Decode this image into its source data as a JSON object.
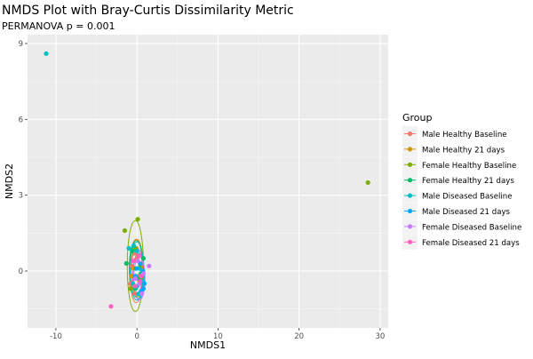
{
  "chart_data": {
    "type": "scatter",
    "title": "NMDS Plot with Bray-Curtis Dissimilarity Metric",
    "subtitle": "PERMANOVA p = 0.001",
    "xlabel": "NMDS1",
    "ylabel": "NMDS2",
    "xlim": [
      -13.5,
      31.0
    ],
    "ylim": [
      -2.25,
      9.35
    ],
    "x_ticks": [
      -10,
      0,
      10,
      20,
      30
    ],
    "y_ticks": [
      0,
      3,
      6,
      9
    ],
    "grid": true,
    "legend_title": "Group",
    "legend_position": "right",
    "series": [
      {
        "name": "Male Healthy Baseline",
        "color": "#F8766D",
        "points": [
          [
            -0.6,
            0.2
          ],
          [
            -0.3,
            0.7
          ],
          [
            0.2,
            -0.2
          ],
          [
            -0.8,
            -0.5
          ],
          [
            0.4,
            0.3
          ],
          [
            -0.2,
            -0.9
          ],
          [
            0.0,
            0.5
          ]
        ],
        "ellipse": {
          "cx": -0.1,
          "cy": 0.0,
          "rx": 0.8,
          "ry": 1.25
        }
      },
      {
        "name": "Male Healthy 21 days",
        "color": "#CD9600",
        "points": [
          [
            -0.4,
            0.1
          ],
          [
            0.1,
            0.6
          ],
          [
            0.3,
            -0.4
          ],
          [
            -0.7,
            -0.2
          ],
          [
            -0.1,
            0.9
          ],
          [
            0.5,
            0.1
          ]
        ],
        "ellipse": {
          "cx": 0.0,
          "cy": 0.1,
          "rx": 0.75,
          "ry": 1.15
        }
      },
      {
        "name": "Female Healthy Baseline",
        "color": "#7CAE00",
        "points": [
          [
            28.5,
            3.5
          ],
          [
            0.1,
            2.05
          ],
          [
            -1.5,
            1.6
          ],
          [
            -0.8,
            -0.7
          ],
          [
            0.4,
            0.2
          ],
          [
            -0.3,
            0.9
          ],
          [
            0.6,
            -0.3
          ]
        ],
        "ellipse": {
          "cx": -0.2,
          "cy": 0.2,
          "rx": 1.0,
          "ry": 1.8
        }
      },
      {
        "name": "Female Healthy 21 days",
        "color": "#00BE67",
        "points": [
          [
            -1.3,
            0.3
          ],
          [
            -0.6,
            0.8
          ],
          [
            0.2,
            -0.3
          ],
          [
            0.8,
            0.5
          ],
          [
            -0.2,
            -0.7
          ],
          [
            0.5,
            -0.1
          ]
        ],
        "ellipse": {
          "cx": -0.1,
          "cy": 0.1,
          "rx": 0.85,
          "ry": 1.1
        }
      },
      {
        "name": "Male Diseased Baseline",
        "color": "#00BFC4",
        "points": [
          [
            -11.2,
            8.6
          ],
          [
            0.0,
            0.8
          ],
          [
            -0.4,
            1.0
          ],
          [
            -1.0,
            0.9
          ],
          [
            0.3,
            0.1
          ],
          [
            -0.5,
            -0.5
          ],
          [
            0.7,
            -0.4
          ],
          [
            0.2,
            -0.9
          ]
        ],
        "ellipse": {
          "cx": 0.0,
          "cy": 0.0,
          "rx": 0.85,
          "ry": 1.15
        }
      },
      {
        "name": "Male Diseased 21 days",
        "color": "#00A9FF",
        "points": [
          [
            0.9,
            -0.5
          ],
          [
            0.8,
            -0.7
          ],
          [
            0.5,
            -0.8
          ],
          [
            -0.2,
            -0.2
          ],
          [
            0.4,
            0.3
          ],
          [
            0.0,
            -0.6
          ],
          [
            0.7,
            0.0
          ],
          [
            -0.1,
            0.1
          ]
        ],
        "ellipse": {
          "cx": 0.2,
          "cy": -0.2,
          "rx": 0.7,
          "ry": 0.9
        }
      },
      {
        "name": "Female Diseased Baseline",
        "color": "#C77CFF",
        "points": [
          [
            1.5,
            0.2
          ],
          [
            0.6,
            -0.9
          ],
          [
            0.3,
            -0.5
          ],
          [
            -0.2,
            -0.3
          ],
          [
            0.8,
            -0.1
          ],
          [
            0.1,
            0.4
          ]
        ],
        "ellipse": {
          "cx": 0.3,
          "cy": -0.3,
          "rx": 0.7,
          "ry": 0.85
        }
      },
      {
        "name": "Female Diseased 21 days",
        "color": "#FF61C3",
        "points": [
          [
            -3.2,
            -1.4
          ],
          [
            0.5,
            -0.2
          ],
          [
            -0.4,
            0.4
          ],
          [
            0.2,
            0.6
          ],
          [
            -0.2,
            -0.6
          ],
          [
            0.4,
            -0.4
          ]
        ],
        "ellipse": {
          "cx": 0.0,
          "cy": 0.0,
          "rx": 0.7,
          "ry": 0.9
        }
      }
    ]
  }
}
